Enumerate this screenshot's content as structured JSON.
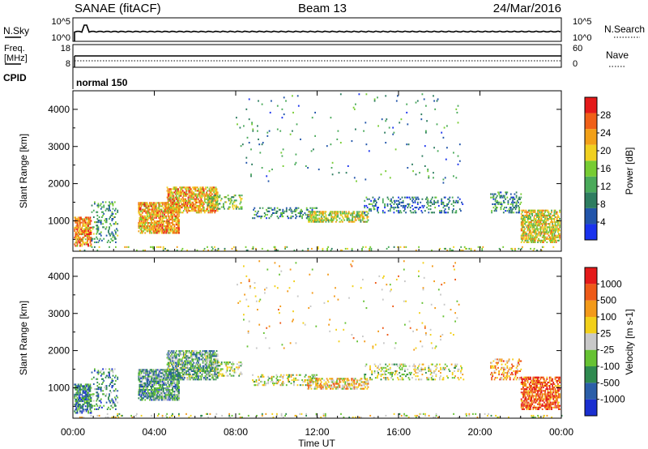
{
  "header": {
    "station": "SANAE (fitACF)",
    "beam": "Beam 13",
    "date": "24/Mar/2016"
  },
  "top_panels": {
    "nsky_label": "N.Sky",
    "nsearch_label": "N.Search",
    "nsky_ticks": [
      "10^5",
      "10^0"
    ],
    "nsearch_ticks": [
      "10^5",
      "10^0"
    ],
    "freq_label_line1": "Freq.",
    "freq_label_line2": "[MHz]",
    "freq_ticks": [
      "18",
      "8"
    ],
    "nave_label": "Nave",
    "nave_ticks": [
      "60",
      "0"
    ],
    "cpid_label": "CPID",
    "cpid_value": "normal 150"
  },
  "colorbars": {
    "power": {
      "label": "Power [dB]",
      "ticks": [
        "4",
        "8",
        "12",
        "16",
        "20",
        "24",
        "28"
      ],
      "colors": [
        "#1a33ee",
        "#2255aa",
        "#2e7d60",
        "#4aaa5a",
        "#77cc33",
        "#f0d020",
        "#f2a018",
        "#f06018",
        "#e41a1a"
      ]
    },
    "velocity": {
      "label": "Velocity [m s-1]",
      "ticks": [
        "1000",
        "500",
        "100",
        "25",
        "-25",
        "-100",
        "-500",
        "-1000"
      ],
      "colors": [
        "#1a2fd0",
        "#2b5ea8",
        "#2f8a50",
        "#66c233",
        "#c8c8c8",
        "#f2d01a",
        "#f39a1a",
        "#ee5a18",
        "#e41a1a"
      ]
    }
  },
  "chart_data": [
    {
      "type": "heatmap",
      "title": "",
      "parameter": "Power",
      "xlabel": "",
      "ylabel": "Slant Range [km]",
      "x_ticks": [
        "00:00",
        "04:00",
        "08:00",
        "12:00",
        "16:00",
        "20:00",
        "00:00"
      ],
      "y_ticks": [
        "1000",
        "2000",
        "3000",
        "4000"
      ],
      "xlim_hours": [
        0,
        24
      ],
      "ylim_km": [
        180,
        4500
      ],
      "scatter_regions": [
        {
          "t0": 0.05,
          "t1": 0.9,
          "r0": 300,
          "r1": 1100,
          "level": 0.75,
          "density": 0.65
        },
        {
          "t0": 0.9,
          "t1": 2.2,
          "r0": 400,
          "r1": 1500,
          "level": 0.35,
          "density": 0.2
        },
        {
          "t0": 3.2,
          "t1": 5.2,
          "r0": 650,
          "r1": 1500,
          "level": 0.7,
          "density": 0.7
        },
        {
          "t0": 4.6,
          "t1": 7.1,
          "r0": 1200,
          "r1": 1900,
          "level": 0.7,
          "density": 0.6
        },
        {
          "t0": 6.6,
          "t1": 8.3,
          "r0": 1300,
          "r1": 1700,
          "level": 0.45,
          "density": 0.3
        },
        {
          "t0": 8.8,
          "t1": 12.0,
          "r0": 1050,
          "r1": 1350,
          "level": 0.3,
          "density": 0.25
        },
        {
          "t0": 11.5,
          "t1": 14.5,
          "r0": 950,
          "r1": 1250,
          "level": 0.55,
          "density": 0.5
        },
        {
          "t0": 14.3,
          "t1": 19.2,
          "r0": 1200,
          "r1": 1650,
          "level": 0.25,
          "density": 0.22
        },
        {
          "t0": 20.5,
          "t1": 22.0,
          "r0": 1200,
          "r1": 1750,
          "level": 0.3,
          "density": 0.3
        },
        {
          "t0": 22.0,
          "t1": 23.9,
          "r0": 400,
          "r1": 1300,
          "level": 0.6,
          "density": 0.6
        },
        {
          "t0": 8.0,
          "t1": 19.0,
          "r0": 2000,
          "r1": 4400,
          "level": 0.3,
          "density": 0.012
        },
        {
          "t0": 0.0,
          "t1": 24.0,
          "r0": 180,
          "r1": 280,
          "level": 0.5,
          "density": 0.08
        }
      ]
    },
    {
      "type": "heatmap",
      "title": "",
      "parameter": "Velocity",
      "xlabel": "Time UT",
      "ylabel": "Slant Range [km]",
      "x_ticks": [
        "00:00",
        "04:00",
        "08:00",
        "12:00",
        "16:00",
        "20:00",
        "00:00"
      ],
      "y_ticks": [
        "1000",
        "2000",
        "3000",
        "4000"
      ],
      "xlim_hours": [
        0,
        24
      ],
      "ylim_km": [
        180,
        4500
      ],
      "scatter_regions": [
        {
          "t0": 0.05,
          "t1": 0.9,
          "r0": 300,
          "r1": 1100,
          "level": 0.25,
          "density": 0.65
        },
        {
          "t0": 0.9,
          "t1": 2.2,
          "r0": 400,
          "r1": 1500,
          "level": 0.3,
          "density": 0.2
        },
        {
          "t0": 3.2,
          "t1": 5.2,
          "r0": 650,
          "r1": 1500,
          "level": 0.3,
          "density": 0.7
        },
        {
          "t0": 4.6,
          "t1": 7.1,
          "r0": 1200,
          "r1": 2000,
          "level": 0.35,
          "density": 0.6
        },
        {
          "t0": 6.6,
          "t1": 8.3,
          "r0": 1300,
          "r1": 1700,
          "level": 0.45,
          "density": 0.3
        },
        {
          "t0": 8.8,
          "t1": 12.0,
          "r0": 1050,
          "r1": 1350,
          "level": 0.5,
          "density": 0.25
        },
        {
          "t0": 11.5,
          "t1": 14.5,
          "r0": 950,
          "r1": 1250,
          "level": 0.62,
          "density": 0.5
        },
        {
          "t0": 14.3,
          "t1": 19.2,
          "r0": 1200,
          "r1": 1650,
          "level": 0.5,
          "density": 0.22
        },
        {
          "t0": 20.5,
          "t1": 22.0,
          "r0": 1200,
          "r1": 1750,
          "level": 0.7,
          "density": 0.3
        },
        {
          "t0": 22.0,
          "t1": 23.9,
          "r0": 400,
          "r1": 1300,
          "level": 0.85,
          "density": 0.6
        },
        {
          "t0": 8.0,
          "t1": 19.0,
          "r0": 2000,
          "r1": 4400,
          "level": 0.6,
          "density": 0.012
        },
        {
          "t0": 0.0,
          "t1": 24.0,
          "r0": 180,
          "r1": 280,
          "level": 0.5,
          "density": 0.08
        }
      ]
    }
  ]
}
